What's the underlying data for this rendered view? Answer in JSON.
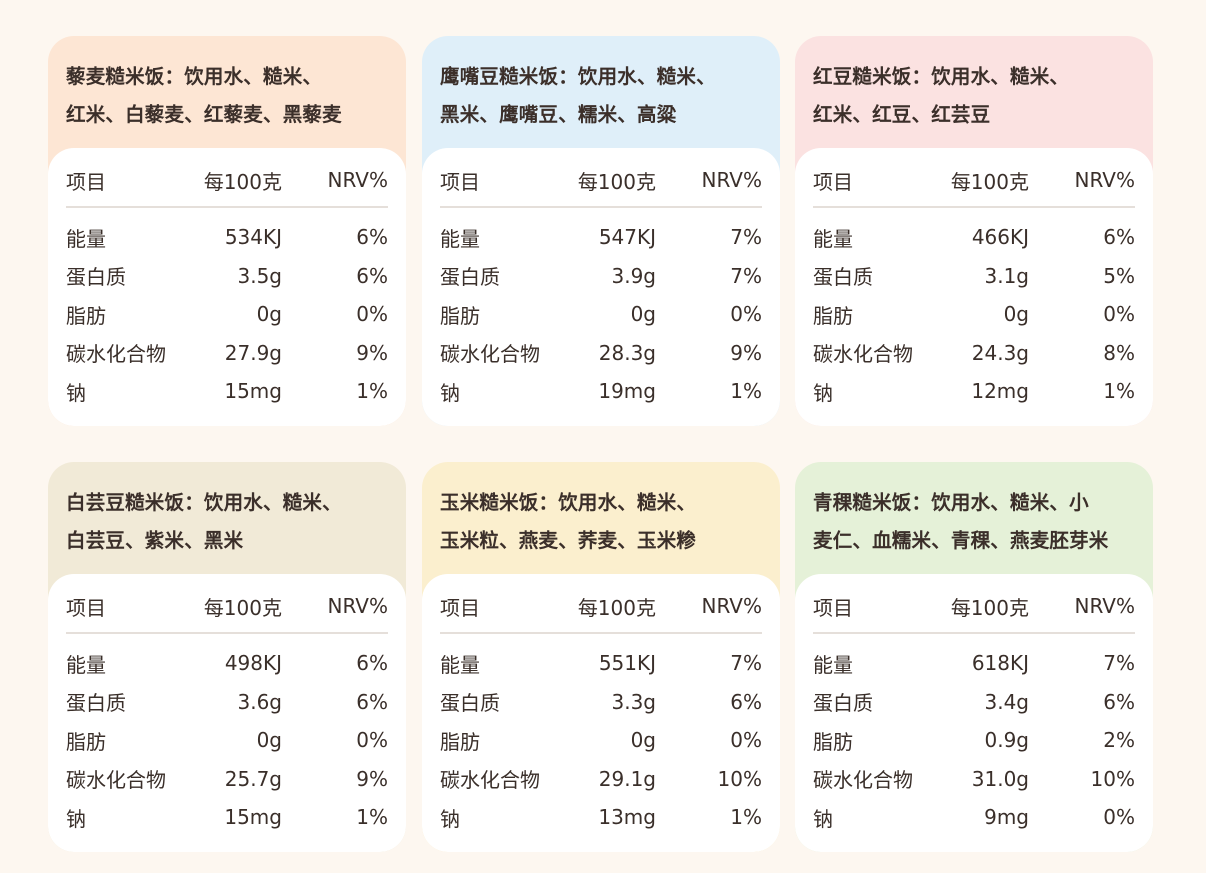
{
  "table_headers": {
    "item": "项目",
    "per100": "每100克",
    "nrv": "NRV%"
  },
  "cards": [
    {
      "color": "#fde6d4",
      "title_lines": [
        "藜麦糙米饭：饮用水、糙米、",
        "红米、白藜麦、红藜麦、黑藜麦"
      ],
      "rows": [
        {
          "name": "能量",
          "value": "534KJ",
          "nrv": "6%"
        },
        {
          "name": "蛋白质",
          "value": "3.5g",
          "nrv": "6%"
        },
        {
          "name": "脂肪",
          "value": "0g",
          "nrv": "0%"
        },
        {
          "name": "碳水化合物",
          "value": "27.9g",
          "nrv": "9%"
        },
        {
          "name": "钠",
          "value": "15mg",
          "nrv": "1%"
        }
      ]
    },
    {
      "color": "#dfeff9",
      "title_lines": [
        "鹰嘴豆糙米饭：饮用水、糙米、",
        "黑米、鹰嘴豆、糯米、高粱"
      ],
      "rows": [
        {
          "name": "能量",
          "value": "547KJ",
          "nrv": "7%"
        },
        {
          "name": "蛋白质",
          "value": "3.9g",
          "nrv": "7%"
        },
        {
          "name": "脂肪",
          "value": "0g",
          "nrv": "0%"
        },
        {
          "name": "碳水化合物",
          "value": "28.3g",
          "nrv": "9%"
        },
        {
          "name": "钠",
          "value": "19mg",
          "nrv": "1%"
        }
      ]
    },
    {
      "color": "#fbe2e1",
      "title_lines": [
        "红豆糙米饭：饮用水、糙米、",
        "红米、红豆、红芸豆"
      ],
      "rows": [
        {
          "name": "能量",
          "value": "466KJ",
          "nrv": "6%"
        },
        {
          "name": "蛋白质",
          "value": "3.1g",
          "nrv": "5%"
        },
        {
          "name": "脂肪",
          "value": "0g",
          "nrv": "0%"
        },
        {
          "name": "碳水化合物",
          "value": "24.3g",
          "nrv": "8%"
        },
        {
          "name": "钠",
          "value": "12mg",
          "nrv": "1%"
        }
      ]
    },
    {
      "color": "#f1ead7",
      "title_lines": [
        "白芸豆糙米饭：饮用水、糙米、",
        "白芸豆、紫米、黑米"
      ],
      "rows": [
        {
          "name": "能量",
          "value": "498KJ",
          "nrv": "6%"
        },
        {
          "name": "蛋白质",
          "value": "3.6g",
          "nrv": "6%"
        },
        {
          "name": "脂肪",
          "value": "0g",
          "nrv": "0%"
        },
        {
          "name": "碳水化合物",
          "value": "25.7g",
          "nrv": "9%"
        },
        {
          "name": "钠",
          "value": "15mg",
          "nrv": "1%"
        }
      ]
    },
    {
      "color": "#fbefce",
      "title_lines": [
        "玉米糙米饭：饮用水、糙米、",
        "玉米粒、燕麦、荞麦、玉米糁"
      ],
      "rows": [
        {
          "name": "能量",
          "value": "551KJ",
          "nrv": "7%"
        },
        {
          "name": "蛋白质",
          "value": "3.3g",
          "nrv": "6%"
        },
        {
          "name": "脂肪",
          "value": "0g",
          "nrv": "0%"
        },
        {
          "name": "碳水化合物",
          "value": "29.1g",
          "nrv": "10%"
        },
        {
          "name": "钠",
          "value": "13mg",
          "nrv": "1%"
        }
      ]
    },
    {
      "color": "#e5f1d8",
      "title_lines": [
        "青稞糙米饭：饮用水、糙米、小",
        "麦仁、血糯米、青稞、燕麦胚芽米"
      ],
      "rows": [
        {
          "name": "能量",
          "value": "618KJ",
          "nrv": "7%"
        },
        {
          "name": "蛋白质",
          "value": "3.4g",
          "nrv": "6%"
        },
        {
          "name": "脂肪",
          "value": "0.9g",
          "nrv": "2%"
        },
        {
          "name": "碳水化合物",
          "value": "31.0g",
          "nrv": "10%"
        },
        {
          "name": "钠",
          "value": "9mg",
          "nrv": "0%"
        }
      ]
    }
  ]
}
